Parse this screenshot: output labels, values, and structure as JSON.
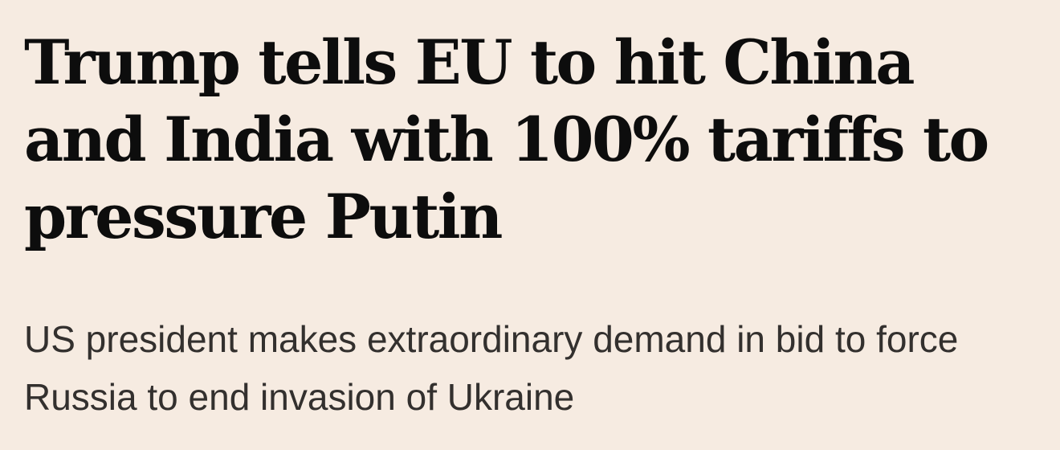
{
  "article": {
    "headline": "Trump tells EU to hit China and India with 100% tariffs to pressure Putin",
    "standfirst": "US president makes extraordinary demand in bid to force Russia to end invasion of Ukraine"
  },
  "colors": {
    "background": "#f6ebe1",
    "headline_text": "#0d0d0d",
    "standfirst_text": "#33302e"
  }
}
